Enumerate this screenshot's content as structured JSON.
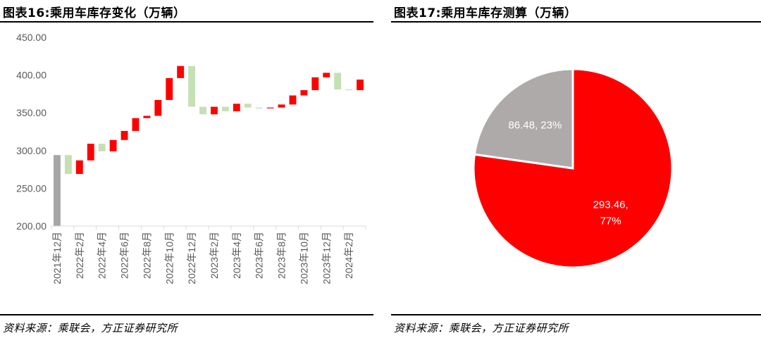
{
  "left": {
    "title": "图表16:乘用车库存变化（万辆）",
    "source": "资料来源：乘联会，方正证券研究所"
  },
  "right": {
    "title": "图表17:乘用车库存测算（万辆）",
    "source": "资料来源：乘联会，方正证券研究所"
  },
  "chart_data": [
    {
      "type": "bar",
      "subtype": "waterfall",
      "title": "图表16:乘用车库存变化（万辆）",
      "ylim": [
        200,
        450
      ],
      "yticks": [
        "200.00",
        "250.00",
        "300.00",
        "350.00",
        "400.00",
        "450.00"
      ],
      "xtick_labels": [
        "2021年12月",
        "2022年2月",
        "2022年4月",
        "2022年6月",
        "2022年8月",
        "2022年10月",
        "2022年12月",
        "2023年2月",
        "2023年4月",
        "2023年6月",
        "2023年8月",
        "2023年10月",
        "2023年12月",
        "2024年2月"
      ],
      "base_label": "2021年12月",
      "base_value": 294,
      "months": [
        "2021年12月",
        "2022年1月",
        "2022年2月",
        "2022年3月",
        "2022年4月",
        "2022年5月",
        "2022年6月",
        "2022年7月",
        "2022年8月",
        "2022年9月",
        "2022年10月",
        "2022年11月",
        "2022年12月",
        "2023年1月",
        "2023年2月",
        "2023年3月",
        "2023年4月",
        "2023年5月",
        "2023年6月",
        "2023年7月",
        "2023年8月",
        "2023年9月",
        "2023年10月",
        "2023年11月",
        "2023年12月",
        "2024年1月",
        "2024年2月",
        "2024年3月"
      ],
      "changes": [
        -25,
        18,
        22,
        -10,
        15,
        12,
        17,
        3,
        21,
        29,
        16,
        -54,
        -10,
        10,
        -6,
        10,
        -5,
        -1,
        1,
        4,
        12,
        7,
        17,
        6,
        -22,
        -1,
        14
      ],
      "colors": {
        "base": "#a6a6a6",
        "increase": "#ff0000",
        "decrease": "#c5e0b4"
      }
    },
    {
      "type": "pie",
      "title": "图表17:乘用车库存测算（万辆）",
      "slices": [
        {
          "value": 293.46,
          "percent": "77%",
          "label_line1": "293.46,",
          "label_line2": "77%",
          "color": "#ff0000",
          "label_color": "#ffffff"
        },
        {
          "value": 86.48,
          "percent": "23%",
          "label_line1": "86.48, 23%",
          "label_line2": "",
          "color": "#aeaaaa",
          "label_color": "#ffffff"
        }
      ]
    }
  ]
}
